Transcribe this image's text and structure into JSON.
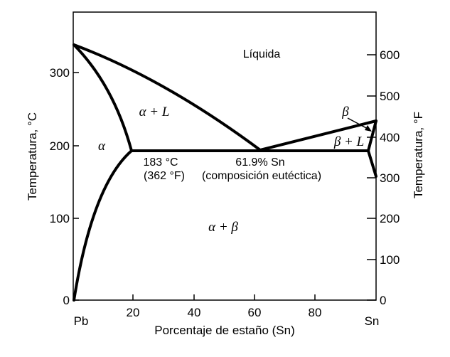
{
  "diagram": {
    "axes": {
      "x_label": "Porcentaje de estaño (Sn)",
      "y_left_label": "Temperatura, °C",
      "y_right_label": "Temperatura, °F",
      "x_left_end": "Pb",
      "x_right_end": "Sn",
      "x_ticks": [
        "20",
        "40",
        "60",
        "80"
      ],
      "y_left_ticks": [
        "0",
        "100",
        "200",
        "300"
      ],
      "y_right_ticks": [
        "0",
        "100",
        "200",
        "300",
        "400",
        "500",
        "600"
      ]
    },
    "regions": {
      "liquid": "Líquida",
      "alpha_liquid": "α + L",
      "alpha": "α",
      "beta": "β",
      "beta_liquid": "β + L",
      "alpha_beta": "α + β"
    },
    "eutectic": {
      "temp_c": "183 °C",
      "temp_f": "(362 °F)",
      "composition": "61.9% Sn",
      "composition_note": "(composición eutéctica)"
    }
  }
}
